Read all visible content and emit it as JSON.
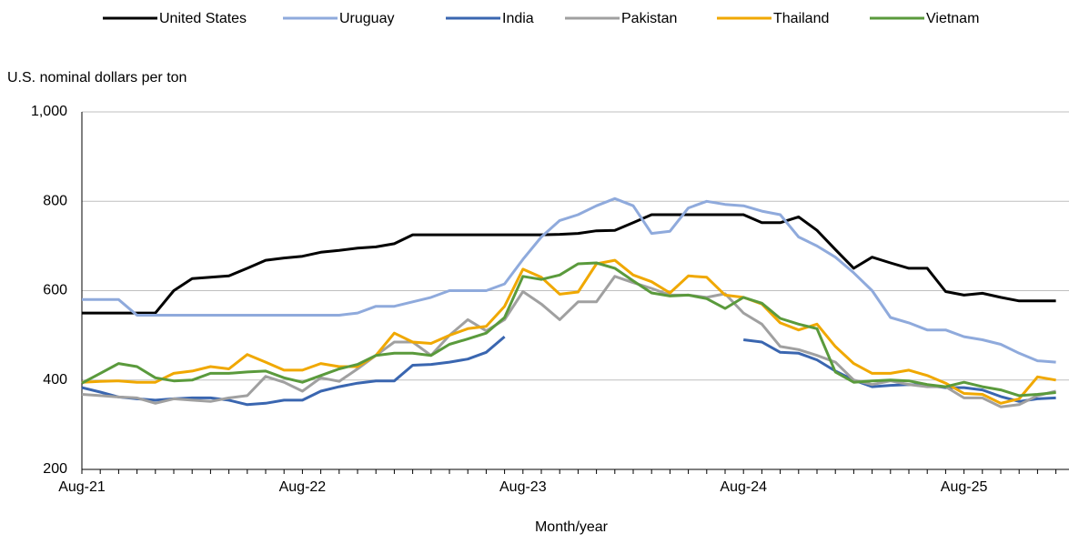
{
  "chart_data": {
    "type": "line",
    "y_label": "U.S. nominal dollars per ton",
    "x_label": "Month/year",
    "categories": [
      "Aug-21",
      null,
      null,
      null,
      null,
      null,
      null,
      null,
      null,
      null,
      null,
      null,
      "Aug-22",
      null,
      null,
      null,
      null,
      null,
      null,
      null,
      null,
      null,
      null,
      null,
      "Aug-23",
      null,
      null,
      null,
      null,
      null,
      null,
      null,
      null,
      null,
      null,
      null,
      "Aug-24",
      null,
      null,
      null,
      null,
      null,
      null,
      null,
      null,
      null,
      null,
      null,
      "Aug-25",
      null,
      null,
      null,
      null,
      null
    ],
    "ylim": [
      200,
      1000
    ],
    "yticks": [
      200,
      400,
      600,
      800,
      {
        "value": 1000,
        "label": "1,000"
      }
    ],
    "grid": true,
    "legend": "top",
    "series": [
      {
        "name": "United States",
        "color": "#000000",
        "values": [
          550,
          550,
          550,
          550,
          550,
          600,
          627,
          630,
          633,
          650,
          668,
          673,
          677,
          686,
          690,
          695,
          698,
          705,
          725,
          725,
          725,
          725,
          725,
          725,
          725,
          725,
          726,
          728,
          734,
          735,
          752,
          770,
          770,
          770,
          770,
          770,
          770,
          752,
          752,
          765,
          735,
          692,
          650,
          675,
          662,
          650,
          650,
          598,
          590,
          594,
          585,
          577,
          577,
          577
        ]
      },
      {
        "name": "Uruguay",
        "color": "#8faadc",
        "values": [
          580,
          580,
          580,
          545,
          545,
          545,
          545,
          545,
          545,
          545,
          545,
          545,
          545,
          545,
          545,
          550,
          565,
          565,
          575,
          585,
          600,
          600,
          600,
          615,
          670,
          720,
          757,
          770,
          790,
          806,
          790,
          728,
          733,
          785,
          800,
          793,
          790,
          778,
          770,
          720,
          700,
          675,
          640,
          600,
          540,
          528,
          512,
          512,
          497,
          490,
          480,
          460,
          443,
          440
        ]
      },
      {
        "name": "India",
        "color": "#3a66b0",
        "values": [
          383,
          373,
          362,
          358,
          355,
          358,
          360,
          360,
          355,
          345,
          348,
          355,
          355,
          375,
          385,
          393,
          398,
          398,
          433,
          435,
          440,
          447,
          462,
          497,
          null,
          null,
          null,
          null,
          null,
          null,
          null,
          null,
          null,
          null,
          null,
          null,
          490,
          485,
          462,
          460,
          445,
          420,
          400,
          385,
          388,
          390,
          388,
          383,
          383,
          378,
          363,
          352,
          358,
          360
        ]
      },
      {
        "name": "Pakistan",
        "color": "#a0a0a0",
        "values": [
          368,
          365,
          362,
          360,
          348,
          358,
          355,
          352,
          360,
          365,
          408,
          395,
          375,
          405,
          397,
          425,
          455,
          485,
          485,
          455,
          500,
          535,
          510,
          535,
          598,
          570,
          535,
          575,
          575,
          632,
          618,
          605,
          590,
          590,
          585,
          593,
          550,
          525,
          475,
          468,
          455,
          440,
          400,
          390,
          398,
          390,
          385,
          385,
          360,
          360,
          340,
          345,
          365,
          375
        ]
      },
      {
        "name": "Thailand",
        "color": "#f0a800",
        "values": [
          395,
          397,
          398,
          395,
          395,
          415,
          420,
          430,
          425,
          457,
          440,
          422,
          422,
          437,
          430,
          430,
          455,
          505,
          485,
          482,
          500,
          515,
          520,
          565,
          648,
          630,
          592,
          597,
          660,
          668,
          635,
          620,
          595,
          633,
          630,
          590,
          585,
          570,
          528,
          512,
          525,
          475,
          437,
          415,
          415,
          422,
          410,
          393,
          370,
          368,
          348,
          358,
          407,
          400
        ]
      },
      {
        "name": "Vietnam",
        "color": "#5a9a3c",
        "values": [
          393,
          415,
          437,
          430,
          405,
          398,
          400,
          415,
          415,
          418,
          420,
          405,
          395,
          410,
          425,
          435,
          455,
          460,
          460,
          455,
          480,
          492,
          505,
          540,
          632,
          625,
          635,
          660,
          662,
          650,
          622,
          595,
          588,
          590,
          582,
          560,
          585,
          572,
          538,
          525,
          515,
          418,
          395,
          398,
          400,
          398,
          390,
          385,
          395,
          385,
          378,
          365,
          368,
          372
        ]
      }
    ]
  }
}
